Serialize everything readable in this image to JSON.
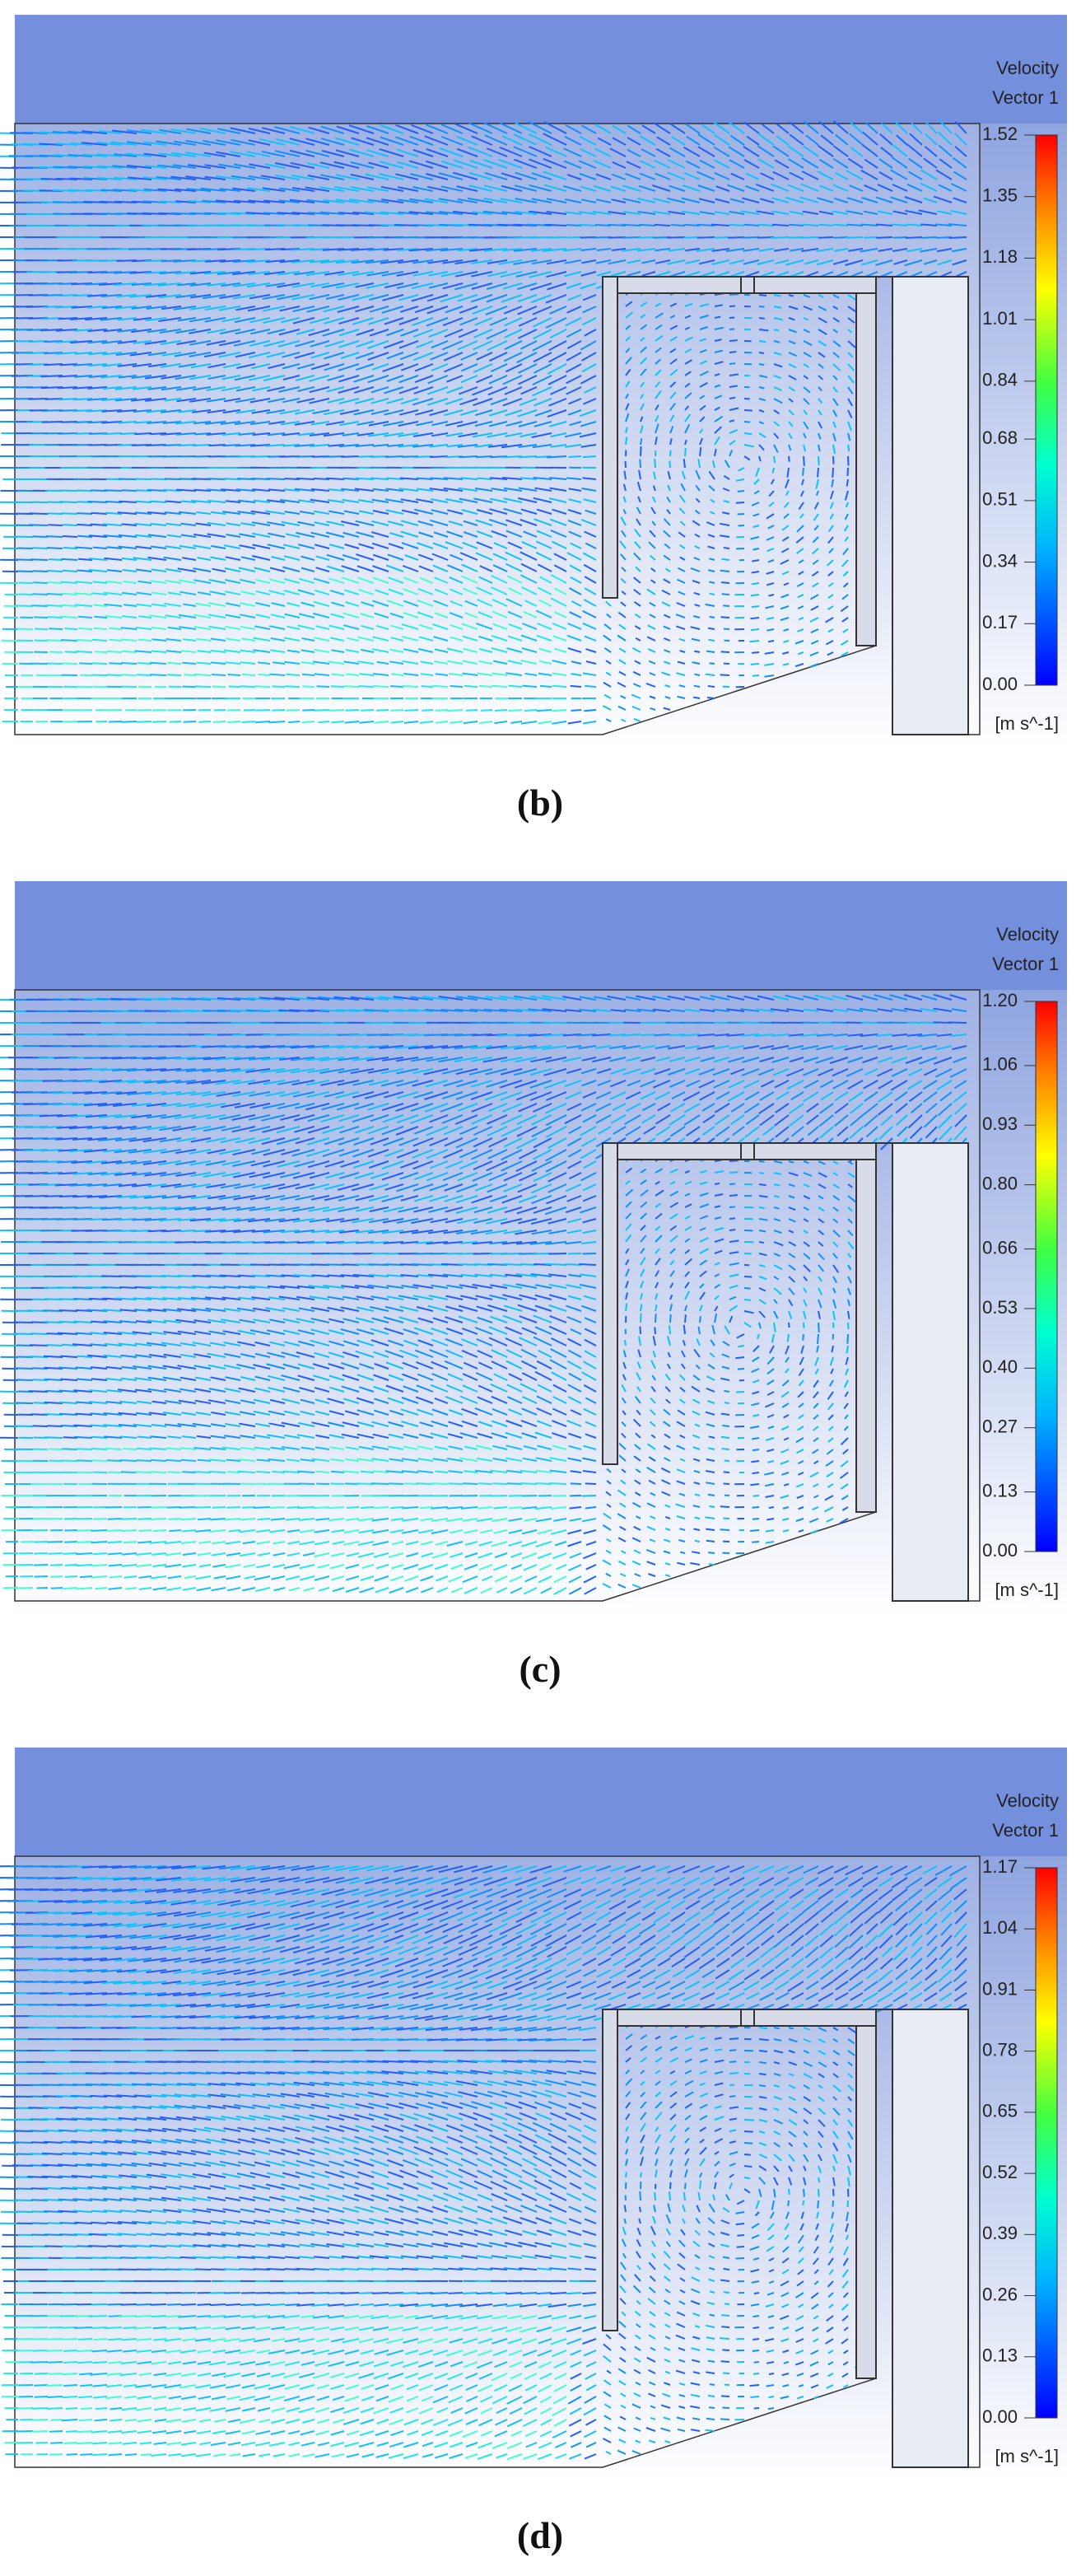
{
  "panels": [
    {
      "caption": "(b)",
      "legend": {
        "title": "Velocity",
        "subtitle": "Vector 1",
        "unit": "[m s^-1]",
        "ticks": [
          1.52,
          1.35,
          1.18,
          1.01,
          0.84,
          0.68,
          0.51,
          0.34,
          0.17,
          {
            "value": 0,
            "label": "0.00"
          }
        ]
      }
    },
    {
      "caption": "(c)",
      "legend": {
        "title": "Velocity",
        "subtitle": "Vector 1",
        "unit": "[m s^-1]",
        "ticks": [
          {
            "value": 1.2,
            "label": "1.20"
          },
          1.06,
          0.93,
          {
            "value": 0.8,
            "label": "0.80"
          },
          0.66,
          0.53,
          {
            "value": 0.4,
            "label": "0.40"
          },
          0.27,
          0.13,
          {
            "value": 0,
            "label": "0.00"
          }
        ]
      }
    },
    {
      "caption": "(d)",
      "legend": {
        "title": "Velocity",
        "subtitle": "Vector 1",
        "unit": "[m s^-1]",
        "ticks": [
          1.17,
          1.04,
          0.91,
          0.78,
          0.65,
          0.52,
          0.39,
          0.26,
          0.13,
          {
            "value": 0,
            "label": "0.00"
          }
        ]
      }
    }
  ]
}
